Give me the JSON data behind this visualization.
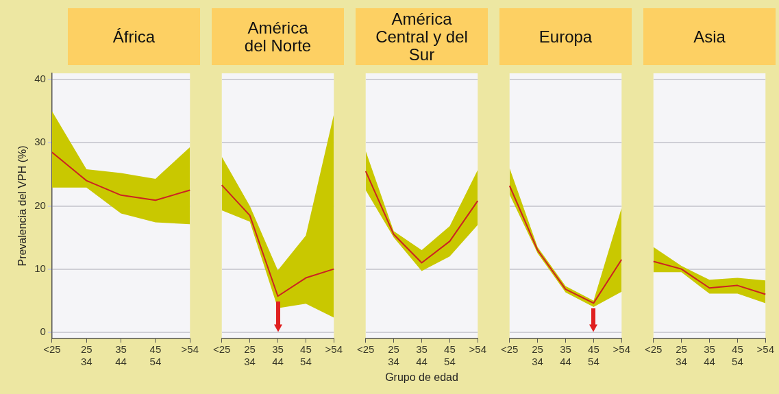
{
  "chart_data": [
    {
      "type": "line",
      "title": "África",
      "ylabel": "Prevalencia del VPH (%)",
      "categories": [
        "<25",
        "25\n34",
        "35\n44",
        "45\n54",
        ">54"
      ],
      "ylim": [
        -1,
        41
      ],
      "yticks": [
        0,
        10,
        20,
        30,
        40
      ],
      "grid": "y",
      "legend": false,
      "series": [
        {
          "color": "#cc2222",
          "values": [
            28.5,
            24,
            21.7,
            20.9,
            22.5
          ],
          "lower": [
            22.9,
            22.9,
            18.8,
            17.4,
            17.1
          ],
          "upper": [
            35,
            25.8,
            25.2,
            24.3,
            29.3
          ]
        }
      ]
    },
    {
      "type": "line",
      "title": "América\ndel Norte",
      "categories": [
        "<25",
        "25\n34",
        "35\n44",
        "45\n54",
        ">54"
      ],
      "ylim": [
        -1,
        41
      ],
      "yticks": [
        0,
        10,
        20,
        30,
        40
      ],
      "grid": "y",
      "legend": false,
      "tick_labels": "x",
      "series": [
        {
          "color": "#cc2222",
          "values": [
            23.3,
            18.5,
            5.7,
            8.6,
            10
          ],
          "lower": [
            19.3,
            17.5,
            3.8,
            4.5,
            2.3
          ],
          "upper": [
            27.8,
            20,
            9.8,
            15.3,
            34.5
          ]
        }
      ]
    },
    {
      "type": "line",
      "title": "América\nCentral y del\nSur",
      "xlabel": "Grupo de edad",
      "categories": [
        "<25",
        "25\n34",
        "35\n44",
        "45\n54",
        ">54"
      ],
      "ylim": [
        -1,
        41
      ],
      "yticks": [
        0,
        10,
        20,
        30,
        40
      ],
      "grid": "y",
      "legend": false,
      "tick_labels": "x",
      "series": [
        {
          "color": "#cc2222",
          "values": [
            25.5,
            15.5,
            11,
            14.4,
            20.8
          ],
          "lower": [
            22.5,
            15,
            9.7,
            12,
            17
          ],
          "upper": [
            28.7,
            16,
            13,
            16.8,
            25.7
          ]
        }
      ]
    },
    {
      "type": "line",
      "title": "Europa",
      "categories": [
        "<25",
        "25\n34",
        "35\n44",
        "45\n54",
        ">54"
      ],
      "ylim": [
        -1,
        41
      ],
      "yticks": [
        0,
        10,
        20,
        30,
        40
      ],
      "grid": "y",
      "legend": false,
      "tick_labels": "x",
      "series": [
        {
          "color": "#cc2222",
          "values": [
            23.2,
            13,
            6.8,
            4.6,
            11.5
          ],
          "lower": [
            21.8,
            12.5,
            6.3,
            4,
            6.4
          ],
          "upper": [
            26,
            13.5,
            7.3,
            5,
            19.7
          ]
        }
      ]
    },
    {
      "type": "line",
      "title": "Asia",
      "categories": [
        "<25",
        "25\n34",
        "35\n44",
        "45\n54",
        ">54"
      ],
      "ylim": [
        -1,
        41
      ],
      "yticks": [
        0,
        10,
        20,
        30,
        40
      ],
      "grid": "y",
      "legend": false,
      "tick_labels": "x",
      "series": [
        {
          "color": "#cc2222",
          "values": [
            11.2,
            10,
            7,
            7.4,
            6
          ],
          "lower": [
            9.5,
            9.5,
            6.1,
            6.1,
            4.6
          ],
          "upper": [
            13.5,
            10.5,
            8.3,
            8.6,
            8.2
          ]
        }
      ]
    }
  ]
}
